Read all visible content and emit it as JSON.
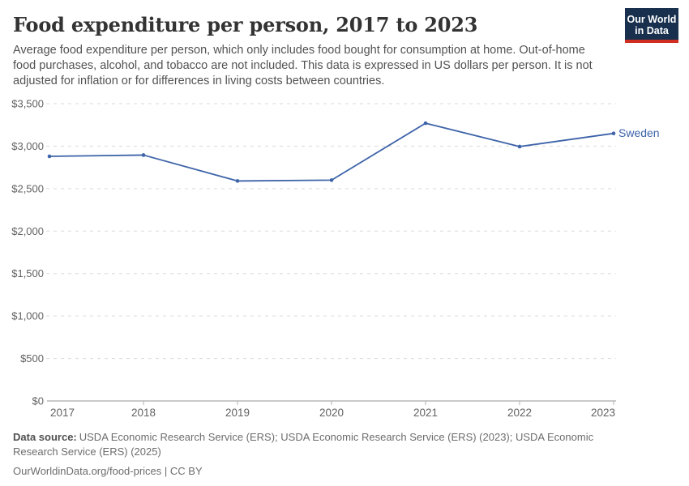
{
  "header": {
    "title": "Food expenditure per person, 2017 to 2023",
    "subtitle": "Average food expenditure per person, which only includes food bought for consumption at home. Out-of-home food purchases, alcohol, and tobacco are not included. This data is expressed in US dollars per person. It is not adjusted for inflation or for differences in living costs between countries.",
    "logo": {
      "line1": "Our World",
      "line2": "in Data"
    }
  },
  "chart_data": {
    "type": "line",
    "title": "Food expenditure per person, 2017 to 2023",
    "x": [
      2017,
      2018,
      2019,
      2020,
      2021,
      2022,
      2023
    ],
    "series": [
      {
        "name": "Sweden",
        "values": [
          2880,
          2895,
          2590,
          2600,
          3270,
          2995,
          3150
        ],
        "color": "#3d63a8"
      }
    ],
    "xlabel": "",
    "ylabel": "US dollars per person",
    "ylim": [
      0,
      3500
    ],
    "ytick_step": 500,
    "ytick_labels": [
      "$0",
      "$500",
      "$1,000",
      "$1,500",
      "$2,000",
      "$2,500",
      "$3,000",
      "$3,500"
    ],
    "grid": "horizontal-dashed",
    "legend_position": "end-of-line-label"
  },
  "footer": {
    "source_label": "Data source:",
    "source_text": "USDA Economic Research Service (ERS); USDA Economic Research Service (ERS) (2023); USDA Economic Research Service (ERS) (2025)",
    "license": "OurWorldinData.org/food-prices | CC BY"
  },
  "colors": {
    "series_blue": "#3d63a8",
    "logo_navy": "#18304e",
    "logo_red": "#cf2e21",
    "gridline": "#dadada",
    "axis_line": "#949494",
    "tick_text": "#636363"
  }
}
